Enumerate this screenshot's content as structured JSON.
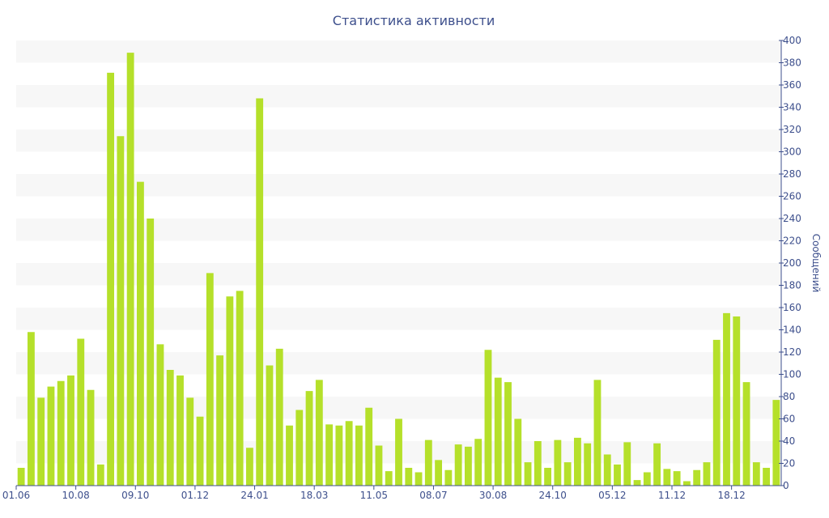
{
  "chart_data": {
    "type": "bar",
    "title": "Статистика активности",
    "ylabel": "Сообщений",
    "xlabel": "",
    "ylim": [
      0,
      400
    ],
    "ytick_step": 20,
    "grid": "horizontal alternating bands",
    "y_axis_side": "right",
    "bar_color": "#b5e02a",
    "band_color": "#f7f7f7",
    "axis_color": "#3d4f8c",
    "x_tick_labels": [
      {
        "label": "01.06",
        "index": 0
      },
      {
        "label": "10.08",
        "index": 6
      },
      {
        "label": "09.10",
        "index": 12
      },
      {
        "label": "01.12",
        "index": 18
      },
      {
        "label": "24.01",
        "index": 24
      },
      {
        "label": "18.03",
        "index": 30
      },
      {
        "label": "11.05",
        "index": 36
      },
      {
        "label": "08.07",
        "index": 42
      },
      {
        "label": "30.08",
        "index": 48
      },
      {
        "label": "24.10",
        "index": 54
      },
      {
        "label": "05.12",
        "index": 60
      },
      {
        "label": "11.12",
        "index": 66
      },
      {
        "label": "18.12",
        "index": 72
      }
    ],
    "values": [
      16,
      138,
      79,
      89,
      94,
      99,
      132,
      86,
      19,
      371,
      314,
      389,
      273,
      240,
      127,
      104,
      99,
      79,
      62,
      191,
      117,
      170,
      175,
      34,
      348,
      108,
      123,
      54,
      68,
      85,
      95,
      55,
      54,
      58,
      54,
      70,
      36,
      13,
      60,
      16,
      12,
      41,
      23,
      14,
      37,
      35,
      42,
      122,
      97,
      93,
      60,
      21,
      40,
      16,
      41,
      21,
      43,
      38,
      95,
      28,
      19,
      39,
      5,
      12,
      38,
      15,
      13,
      4,
      14,
      21,
      131,
      155,
      152,
      93,
      21,
      16,
      77
    ]
  }
}
